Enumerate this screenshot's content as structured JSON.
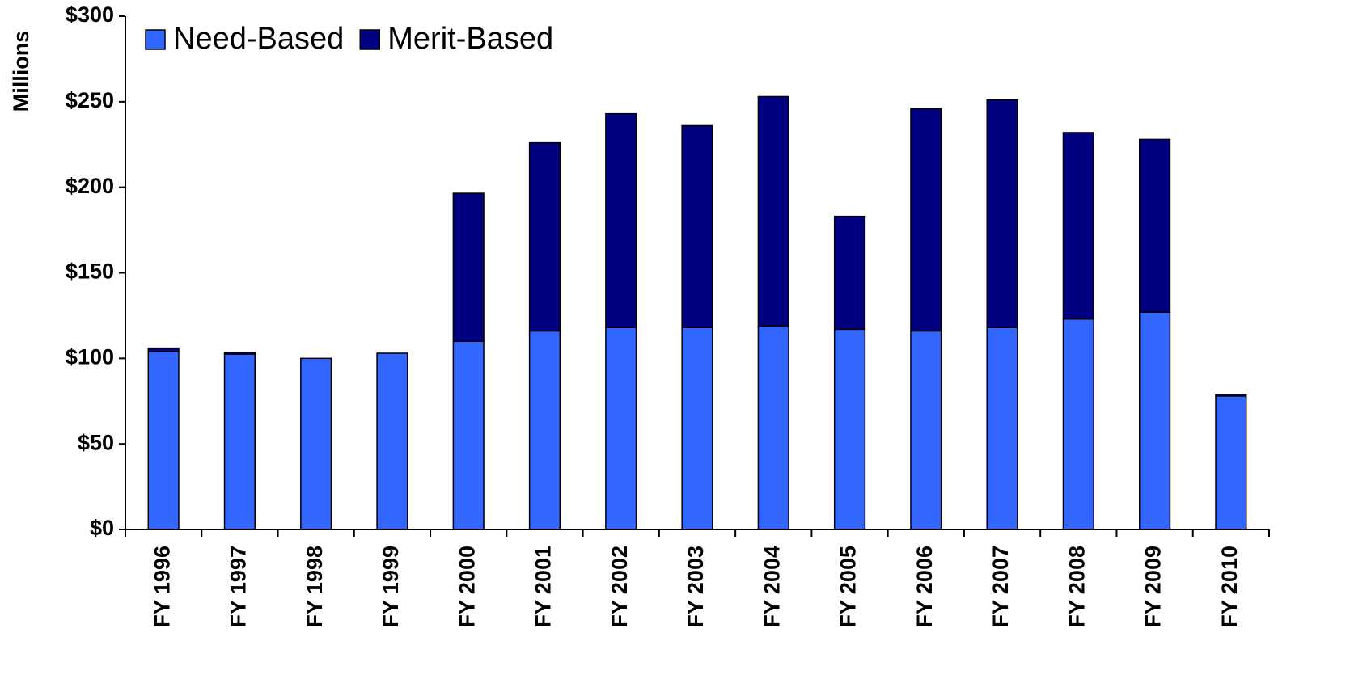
{
  "chart_data": {
    "type": "stacked_bar",
    "y_label": "Millions",
    "categories": [
      "FY 1996",
      "FY 1997",
      "FY 1998",
      "FY 1999",
      "FY 2000",
      "FY 2001",
      "FY 2002",
      "FY 2003",
      "FY 2004",
      "FY 2005",
      "FY 2006",
      "FY 2007",
      "FY 2008",
      "FY 2009",
      "FY 2010"
    ],
    "series": [
      {
        "name": "Need-Based",
        "color": "#3366ff",
        "values": [
          104,
          102.5,
          100,
          103,
          110,
          116,
          118,
          118,
          119,
          117,
          116,
          118,
          123,
          127,
          78
        ]
      },
      {
        "name": "Merit-Based",
        "color": "#000080",
        "values": [
          2,
          1,
          0,
          0,
          86.5,
          110,
          125,
          118,
          134,
          66,
          130,
          133,
          109,
          101,
          1
        ]
      }
    ],
    "ylim": [
      0,
      300
    ],
    "yticks": [
      {
        "value": 0,
        "label": "$0"
      },
      {
        "value": 50,
        "label": "$50"
      },
      {
        "value": 100,
        "label": "$100"
      },
      {
        "value": 150,
        "label": "$150"
      },
      {
        "value": 200,
        "label": "$200"
      },
      {
        "value": 250,
        "label": "$250"
      },
      {
        "value": 300,
        "label": "$300"
      }
    ],
    "legend": "top-left"
  }
}
